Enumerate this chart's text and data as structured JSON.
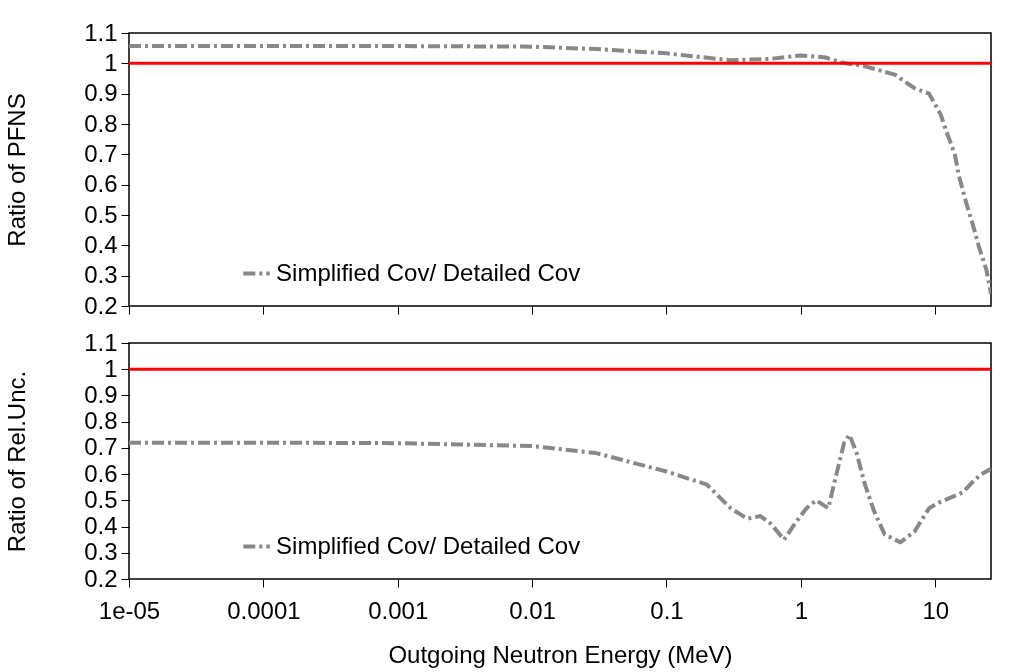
{
  "chart_data": [
    {
      "type": "line",
      "ylabel": "Ratio of PFNS",
      "log": "x",
      "xlim": [
        1e-05,
        26
      ],
      "xticks": [
        {
          "value": 1e-05,
          "label": null
        },
        {
          "value": 0.0001,
          "label": null
        },
        {
          "value": 0.001,
          "label": null
        },
        {
          "value": 0.01,
          "label": null
        },
        {
          "value": 0.1,
          "label": null
        },
        {
          "value": 1,
          "label": null
        },
        {
          "value": 10,
          "label": null
        }
      ],
      "ylim": [
        0.2,
        1.1
      ],
      "yticks": [
        0.2,
        0.3,
        0.4,
        0.5,
        0.6,
        0.7,
        0.8,
        0.9,
        1,
        1.1
      ],
      "tick_labels": "y",
      "grid": false,
      "legend": "bottom",
      "line_style": "dashed",
      "marker": "none",
      "ref_lines": [
        {
          "axis": "y",
          "value": 1,
          "color": "#ff0000"
        }
      ],
      "series": [
        {
          "name": "Simplified Cov/ Detailed Cov",
          "color": "#888888",
          "x": [
            1e-05,
            0.0001,
            0.001,
            0.01,
            0.03,
            0.1,
            0.3,
            0.6,
            1,
            1.5,
            2,
            3,
            5,
            7,
            9,
            10,
            11,
            12,
            14,
            15,
            17,
            19,
            21,
            24,
            26
          ],
          "values": [
            1.057,
            1.057,
            1.057,
            1.055,
            1.047,
            1.033,
            1.01,
            1.015,
            1.026,
            1.02,
            1.003,
            0.99,
            0.963,
            0.918,
            0.9,
            0.864,
            0.83,
            0.78,
            0.7,
            0.63,
            0.54,
            0.47,
            0.4,
            0.32,
            0.24
          ]
        }
      ]
    },
    {
      "type": "line",
      "ylabel": "Ratio of Rel.Unc.",
      "xlabel": "Outgoing Neutron Energy (MeV)",
      "log": "x",
      "xlim": [
        1e-05,
        26
      ],
      "xticks": [
        {
          "value": 1e-05,
          "label": "1e-05"
        },
        0.0001,
        0.001,
        0.01,
        0.1,
        1,
        10
      ],
      "ylim": [
        0.2,
        1.1
      ],
      "yticks": [
        0.2,
        0.3,
        0.4,
        0.5,
        0.6,
        0.7,
        0.8,
        0.9,
        1,
        1.1
      ],
      "grid": false,
      "legend": "bottom",
      "line_style": "dashed",
      "marker": "none",
      "ref_lines": [
        {
          "axis": "y",
          "value": 1,
          "color": "#ff0000"
        }
      ],
      "series": [
        {
          "name": "Simplified Cov/ Detailed Cov",
          "color": "#888888",
          "x": [
            1e-05,
            0.0001,
            0.001,
            0.01,
            0.03,
            0.1,
            0.2,
            0.3,
            0.4,
            0.5,
            0.6,
            0.75,
            0.9,
            1.1,
            1.3,
            1.6,
            1.8,
            2.1,
            2.3,
            2.6,
            3,
            3.5,
            4.2,
            5.5,
            7,
            9,
            10.5,
            13,
            16,
            19,
            22,
            26
          ],
          "values": [
            0.72,
            0.72,
            0.718,
            0.707,
            0.68,
            0.61,
            0.56,
            0.47,
            0.43,
            0.44,
            0.41,
            0.35,
            0.41,
            0.47,
            0.5,
            0.47,
            0.58,
            0.72,
            0.75,
            0.68,
            0.56,
            0.46,
            0.37,
            0.34,
            0.38,
            0.47,
            0.49,
            0.51,
            0.53,
            0.57,
            0.6,
            0.62
          ]
        }
      ]
    }
  ]
}
